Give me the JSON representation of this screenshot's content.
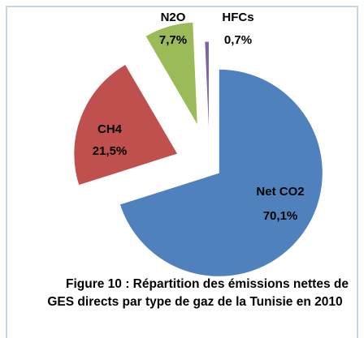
{
  "chart_data": {
    "type": "pie",
    "title": "Figure 10 : Répartition des émissions nettes de GES directs par type de gaz de la Tunisie en 2010",
    "categories": [
      "Net CO2",
      "CH4",
      "N2O",
      "HFCs"
    ],
    "values": [
      70.1,
      21.5,
      7.7,
      0.7
    ],
    "value_labels": [
      "70,1%",
      "21,5%",
      "7,7%",
      "0,7%"
    ],
    "colors": [
      "#4f81bd",
      "#c0504d",
      "#9bbb59",
      "#8064a2"
    ]
  }
}
